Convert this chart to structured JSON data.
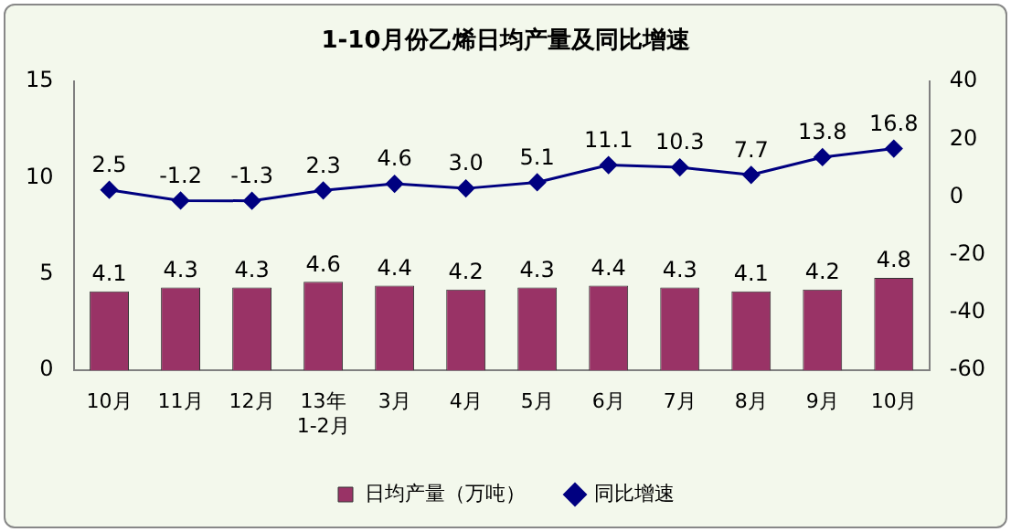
{
  "chart_data": {
    "type": "bar",
    "title": "1-10月份乙烯日均产量及同比增速",
    "categories": [
      "10月",
      "11月",
      "12月",
      "13年\n1-2月",
      "3月",
      "4月",
      "5月",
      "6月",
      "7月",
      "8月",
      "9月",
      "10月"
    ],
    "series": [
      {
        "name": "日均产量（万吨）",
        "color": "#993366",
        "values": [
          4.1,
          4.3,
          4.3,
          4.6,
          4.4,
          4.2,
          4.3,
          4.4,
          4.3,
          4.1,
          4.2,
          4.8
        ],
        "value_labels": [
          "4.1",
          "4.3",
          "4.3",
          "4.6",
          "4.4",
          "4.2",
          "4.3",
          "4.4",
          "4.3",
          "4.1",
          "4.2",
          "4.8"
        ]
      },
      {
        "name": "同比增速",
        "type": "line",
        "axis": "y2",
        "color": "#000080",
        "values": [
          2.5,
          -1.2,
          -1.3,
          2.3,
          4.6,
          3.0,
          5.1,
          11.1,
          10.3,
          7.7,
          13.8,
          16.8
        ],
        "value_labels": [
          "2.5",
          "-1.2",
          "-1.3",
          "2.3",
          "4.6",
          "3.0",
          "5.1",
          "11.1",
          "10.3",
          "7.7",
          "13.8",
          "16.8"
        ]
      }
    ],
    "ylim": [
      0,
      15
    ],
    "yticks": [
      0,
      5,
      10,
      15
    ],
    "y2lim": [
      -60,
      40
    ],
    "y2ticks": [
      -60,
      -40,
      -20,
      0,
      20,
      40
    ],
    "legend": "bottom",
    "grid": false,
    "marker": "diamond",
    "line_style": "solid"
  }
}
